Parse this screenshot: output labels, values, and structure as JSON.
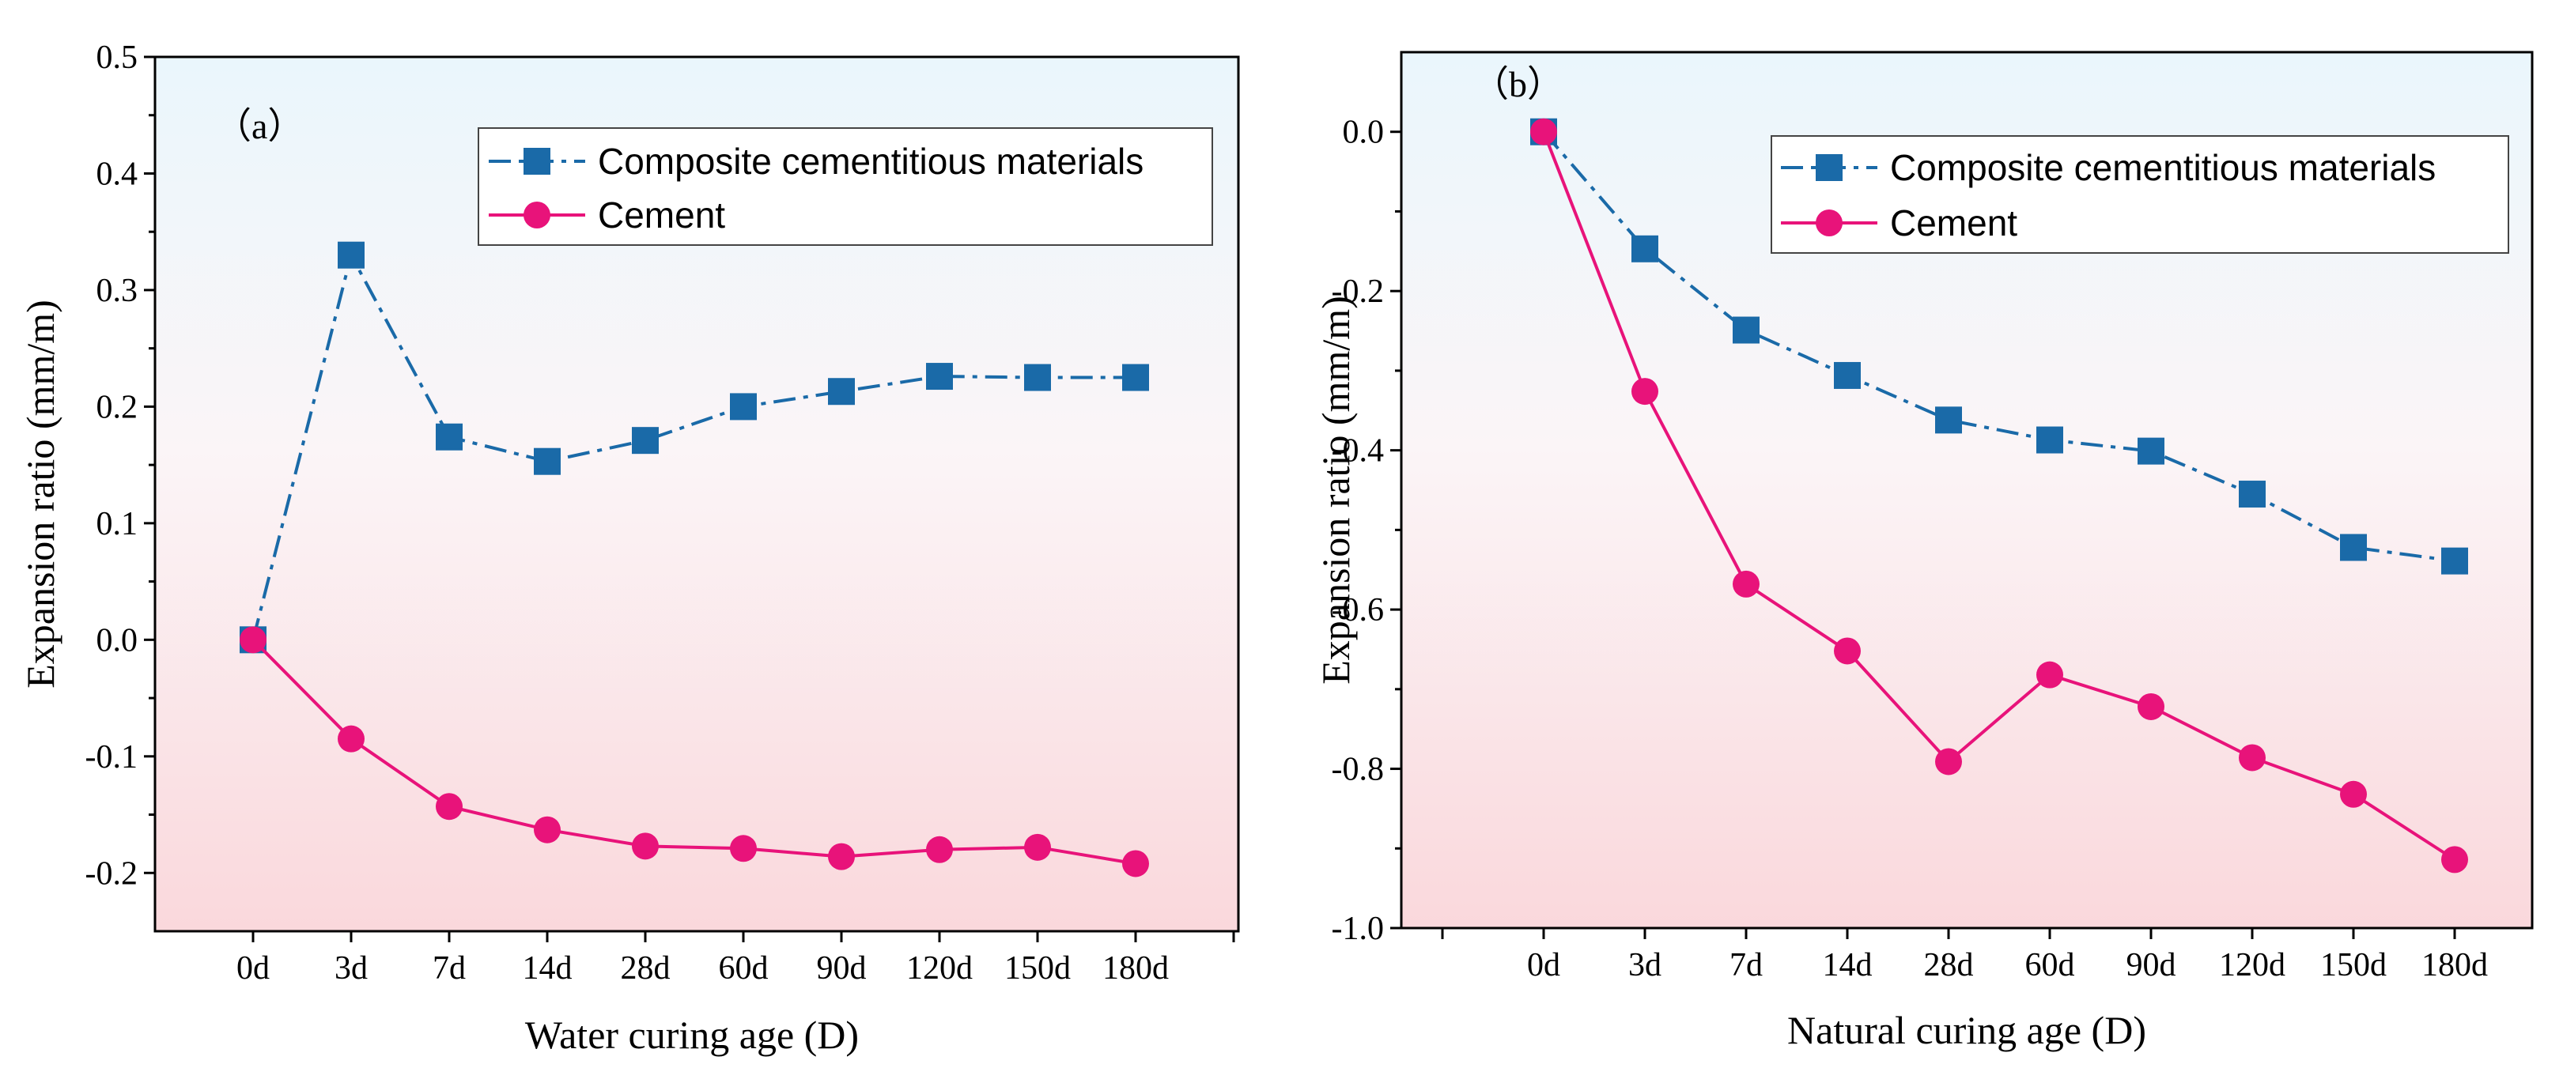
{
  "chart_data": [
    {
      "type": "line",
      "panel_label": "（a）",
      "categories": [
        "0d",
        "3d",
        "7d",
        "14d",
        "28d",
        "60d",
        "90d",
        "120d",
        "150d",
        "180d"
      ],
      "xlabel": "Water curing age (D)",
      "ylabel": "Expansion ratio (mm/m)",
      "ylim": [
        -0.25,
        0.5
      ],
      "yticks": [
        -0.2,
        -0.1,
        0.0,
        0.1,
        0.2,
        0.3,
        0.4,
        0.5
      ],
      "ytick_labels": [
        "-0.2",
        "-0.1",
        "0.0",
        "0.1",
        "0.2",
        "0.3",
        "0.4",
        "0.5"
      ],
      "legend_position": "top-right",
      "series": [
        {
          "name": "Composite cementitious materials",
          "marker": "square",
          "line_style": "dash-dot",
          "color": "#1a6aa8",
          "values": [
            0.0,
            0.33,
            0.174,
            0.153,
            0.171,
            0.2,
            0.213,
            0.226,
            0.225,
            0.225
          ]
        },
        {
          "name": "Cement",
          "marker": "circle",
          "line_style": "solid",
          "color": "#e8137a",
          "values": [
            0.0,
            -0.085,
            -0.143,
            -0.163,
            -0.177,
            -0.179,
            -0.186,
            -0.18,
            -0.178,
            -0.192
          ]
        }
      ]
    },
    {
      "type": "line",
      "panel_label": "（b）",
      "categories": [
        "0d",
        "3d",
        "7d",
        "14d",
        "28d",
        "60d",
        "90d",
        "120d",
        "150d",
        "180d"
      ],
      "xlabel": "Natural curing age (D)",
      "ylabel": "Expansion ratio (mm/m)",
      "ylim": [
        -1.0,
        0.1
      ],
      "yticks": [
        -1.0,
        -0.8,
        -0.6,
        -0.4,
        -0.2,
        0.0
      ],
      "ytick_labels": [
        "-1.0",
        "-0.8",
        "-0.6",
        "-0.4",
        "-0.2",
        "0.0"
      ],
      "legend_position": "top-right",
      "series": [
        {
          "name": "Composite cementitious materials",
          "marker": "square",
          "line_style": "dash-dot",
          "color": "#1a6aa8",
          "values": [
            0.0,
            -0.147,
            -0.249,
            -0.306,
            -0.362,
            -0.387,
            -0.401,
            -0.455,
            -0.522,
            -0.539
          ]
        },
        {
          "name": "Cement",
          "marker": "circle",
          "line_style": "solid",
          "color": "#e8137a",
          "values": [
            0.0,
            -0.326,
            -0.568,
            -0.652,
            -0.791,
            -0.682,
            -0.722,
            -0.786,
            -0.832,
            -0.914
          ]
        }
      ]
    }
  ]
}
